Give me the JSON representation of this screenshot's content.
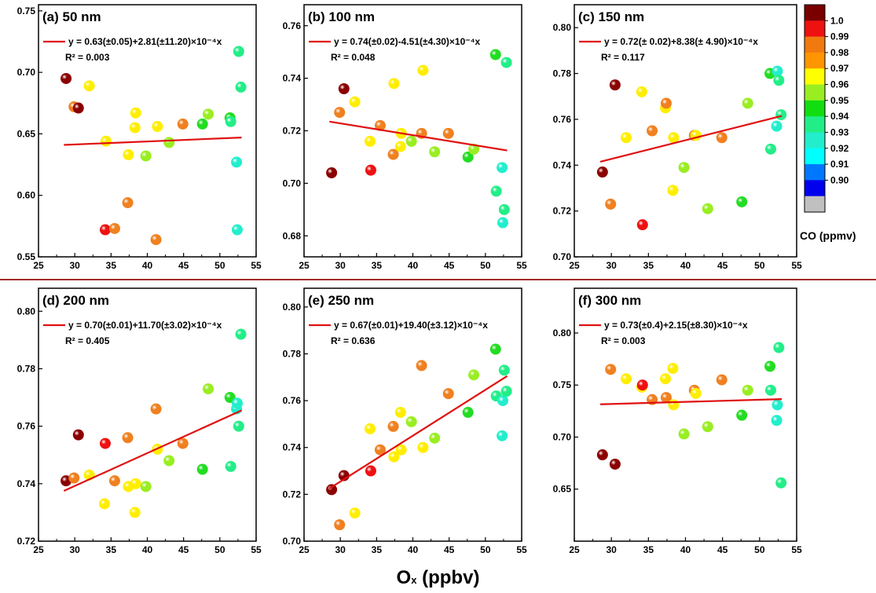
{
  "colors": {
    "fit_line": "#e01010",
    "separator": "#a52a2a"
  },
  "xlabel": {
    "main": "O",
    "sub": "x",
    "rest": " (ppbv)"
  },
  "colorbar": {
    "title": "CO (ppmv)",
    "levels": [
      {
        "label": "1.0",
        "color": "#ee1111"
      },
      {
        "label": "0.99",
        "color": "#f07a10"
      },
      {
        "label": "0.98",
        "color": "#ff9500"
      },
      {
        "label": "0.97",
        "color": "#ffff00"
      },
      {
        "label": "0.96",
        "color": "#99ee22"
      },
      {
        "label": "0.95",
        "color": "#11dd11"
      },
      {
        "label": "0.94",
        "color": "#22ee88"
      },
      {
        "label": "0.93",
        "color": "#22eecc"
      },
      {
        "label": "0.92",
        "color": "#00ffff"
      },
      {
        "label": "0.91",
        "color": "#0077ff"
      },
      {
        "label": "0.90",
        "color": "#0000ee"
      }
    ],
    "top_color": "#7a0000",
    "bottom_color": "#c0c0c0"
  },
  "chart_data": [
    {
      "type": "scatter",
      "title": "(a) 50 nm",
      "equation": "y = 0.63(±0.05)+2.81(±11.20)×10⁻⁴x",
      "r2": "R² = 0.003",
      "xlim": [
        25,
        55
      ],
      "ylim": [
        0.55,
        0.755
      ],
      "xticks": [
        "25",
        "30",
        "35",
        "40",
        "45",
        "50",
        "55"
      ],
      "yticks": [
        "0.55",
        "0.60",
        "0.65",
        "0.70",
        "0.75"
      ],
      "fit": [
        [
          28.5,
          0.641
        ],
        [
          53,
          0.647
        ]
      ],
      "points": [
        {
          "x": 28.8,
          "y": 0.695,
          "c": "#8b0000"
        },
        {
          "x": 29.9,
          "y": 0.672,
          "c": "#f08020"
        },
        {
          "x": 30.5,
          "y": 0.671,
          "c": "#8b0000"
        },
        {
          "x": 32.0,
          "y": 0.689,
          "c": "#ffee00"
        },
        {
          "x": 34.2,
          "y": 0.572,
          "c": "#ee1111"
        },
        {
          "x": 34.3,
          "y": 0.644,
          "c": "#ffee00"
        },
        {
          "x": 35.5,
          "y": 0.573,
          "c": "#f08020"
        },
        {
          "x": 37.3,
          "y": 0.594,
          "c": "#f08020"
        },
        {
          "x": 37.4,
          "y": 0.633,
          "c": "#ffee00"
        },
        {
          "x": 38.3,
          "y": 0.655,
          "c": "#ffee00"
        },
        {
          "x": 38.4,
          "y": 0.667,
          "c": "#ffee00"
        },
        {
          "x": 39.8,
          "y": 0.632,
          "c": "#99ee22"
        },
        {
          "x": 41.2,
          "y": 0.564,
          "c": "#f08020"
        },
        {
          "x": 41.4,
          "y": 0.656,
          "c": "#ffee00"
        },
        {
          "x": 43.0,
          "y": 0.643,
          "c": "#99ee22"
        },
        {
          "x": 44.9,
          "y": 0.658,
          "c": "#f08020"
        },
        {
          "x": 47.6,
          "y": 0.658,
          "c": "#22dd22"
        },
        {
          "x": 48.4,
          "y": 0.666,
          "c": "#99ee22"
        },
        {
          "x": 51.4,
          "y": 0.663,
          "c": "#22dd22"
        },
        {
          "x": 51.5,
          "y": 0.66,
          "c": "#22ee88"
        },
        {
          "x": 52.3,
          "y": 0.627,
          "c": "#22eecc"
        },
        {
          "x": 52.4,
          "y": 0.572,
          "c": "#22eecc"
        },
        {
          "x": 52.6,
          "y": 0.717,
          "c": "#22ee88"
        },
        {
          "x": 52.9,
          "y": 0.688,
          "c": "#22ee88"
        }
      ]
    },
    {
      "type": "scatter",
      "title": "(b) 100 nm",
      "equation": "y = 0.74(±0.02)-4.51(±4.30)×10⁻⁴x",
      "r2": "R² = 0.048",
      "xlim": [
        25,
        55
      ],
      "ylim": [
        0.672,
        0.768
      ],
      "xticks": [
        "25",
        "30",
        "35",
        "40",
        "45",
        "50",
        "55"
      ],
      "yticks": [
        "0.68",
        "0.70",
        "0.72",
        "0.74",
        "0.76"
      ],
      "fit": [
        [
          28.5,
          0.7235
        ],
        [
          53,
          0.7125
        ]
      ],
      "points": [
        {
          "x": 28.8,
          "y": 0.704,
          "c": "#8b0000"
        },
        {
          "x": 29.9,
          "y": 0.727,
          "c": "#f08020"
        },
        {
          "x": 30.5,
          "y": 0.736,
          "c": "#8b0000"
        },
        {
          "x": 32.0,
          "y": 0.731,
          "c": "#ffee00"
        },
        {
          "x": 34.1,
          "y": 0.716,
          "c": "#ffee00"
        },
        {
          "x": 34.2,
          "y": 0.705,
          "c": "#ee1111"
        },
        {
          "x": 35.5,
          "y": 0.722,
          "c": "#f08020"
        },
        {
          "x": 37.3,
          "y": 0.711,
          "c": "#f08020"
        },
        {
          "x": 37.4,
          "y": 0.738,
          "c": "#ffee00"
        },
        {
          "x": 38.3,
          "y": 0.714,
          "c": "#ffee00"
        },
        {
          "x": 38.4,
          "y": 0.719,
          "c": "#ffee00"
        },
        {
          "x": 39.8,
          "y": 0.716,
          "c": "#99ee22"
        },
        {
          "x": 41.2,
          "y": 0.719,
          "c": "#f08020"
        },
        {
          "x": 41.4,
          "y": 0.743,
          "c": "#ffee00"
        },
        {
          "x": 43.0,
          "y": 0.712,
          "c": "#99ee22"
        },
        {
          "x": 44.9,
          "y": 0.719,
          "c": "#f08020"
        },
        {
          "x": 47.6,
          "y": 0.71,
          "c": "#22dd22"
        },
        {
          "x": 48.4,
          "y": 0.713,
          "c": "#99ee22"
        },
        {
          "x": 51.4,
          "y": 0.749,
          "c": "#22dd22"
        },
        {
          "x": 51.5,
          "y": 0.697,
          "c": "#22ee88"
        },
        {
          "x": 52.3,
          "y": 0.706,
          "c": "#22eecc"
        },
        {
          "x": 52.4,
          "y": 0.685,
          "c": "#22eecc"
        },
        {
          "x": 52.6,
          "y": 0.69,
          "c": "#22ee88"
        },
        {
          "x": 52.9,
          "y": 0.746,
          "c": "#22ee88"
        }
      ]
    },
    {
      "type": "scatter",
      "title": "(c) 150 nm",
      "equation": "y = 0.72(± 0.02)+8.38(± 4.90)×10⁻⁴x",
      "r2": "R² = 0.117",
      "xlim": [
        25,
        55
      ],
      "ylim": [
        0.7,
        0.81
      ],
      "xticks": [
        "25",
        "30",
        "35",
        "40",
        "45",
        "50",
        "55"
      ],
      "yticks": [
        "0.70",
        "0.72",
        "0.74",
        "0.76",
        "0.78",
        "0.80"
      ],
      "fit": [
        [
          28.5,
          0.7415
        ],
        [
          53,
          0.7615
        ]
      ],
      "points": [
        {
          "x": 28.8,
          "y": 0.737,
          "c": "#8b0000"
        },
        {
          "x": 29.9,
          "y": 0.723,
          "c": "#f08020"
        },
        {
          "x": 30.5,
          "y": 0.775,
          "c": "#8b0000"
        },
        {
          "x": 32.0,
          "y": 0.752,
          "c": "#ffee00"
        },
        {
          "x": 34.1,
          "y": 0.772,
          "c": "#ffee00"
        },
        {
          "x": 34.2,
          "y": 0.714,
          "c": "#ee1111"
        },
        {
          "x": 35.5,
          "y": 0.755,
          "c": "#f08020"
        },
        {
          "x": 37.3,
          "y": 0.765,
          "c": "#ffee00"
        },
        {
          "x": 37.4,
          "y": 0.767,
          "c": "#f08020"
        },
        {
          "x": 38.3,
          "y": 0.729,
          "c": "#ffee00"
        },
        {
          "x": 38.4,
          "y": 0.752,
          "c": "#ffee00"
        },
        {
          "x": 39.8,
          "y": 0.739,
          "c": "#99ee22"
        },
        {
          "x": 41.2,
          "y": 0.753,
          "c": "#f08020"
        },
        {
          "x": 41.4,
          "y": 0.753,
          "c": "#ffee00"
        },
        {
          "x": 43.0,
          "y": 0.721,
          "c": "#99ee22"
        },
        {
          "x": 44.9,
          "y": 0.752,
          "c": "#f08020"
        },
        {
          "x": 47.6,
          "y": 0.724,
          "c": "#22dd22"
        },
        {
          "x": 48.4,
          "y": 0.767,
          "c": "#99ee22"
        },
        {
          "x": 51.4,
          "y": 0.78,
          "c": "#22dd22"
        },
        {
          "x": 51.5,
          "y": 0.747,
          "c": "#22ee88"
        },
        {
          "x": 52.3,
          "y": 0.757,
          "c": "#22eecc"
        },
        {
          "x": 52.4,
          "y": 0.781,
          "c": "#22eecc"
        },
        {
          "x": 52.6,
          "y": 0.777,
          "c": "#22ee88"
        },
        {
          "x": 52.9,
          "y": 0.762,
          "c": "#22ee88"
        }
      ]
    },
    {
      "type": "scatter",
      "title": "(d) 200 nm",
      "equation": "y = 0.70(±0.01)+11.70(±3.02)×10⁻⁴x",
      "r2": "R² = 0.405",
      "xlim": [
        25,
        55
      ],
      "ylim": [
        0.72,
        0.808
      ],
      "xticks": [
        "25",
        "30",
        "35",
        "40",
        "45",
        "50",
        "55"
      ],
      "yticks": [
        "0.72",
        "0.74",
        "0.76",
        "0.78",
        "0.80"
      ],
      "fit": [
        [
          28.5,
          0.7375
        ],
        [
          53,
          0.7655
        ]
      ],
      "points": [
        {
          "x": 28.8,
          "y": 0.741,
          "c": "#8b0000"
        },
        {
          "x": 29.9,
          "y": 0.742,
          "c": "#f08020"
        },
        {
          "x": 30.5,
          "y": 0.757,
          "c": "#8b0000"
        },
        {
          "x": 32.0,
          "y": 0.743,
          "c": "#ffee00"
        },
        {
          "x": 34.1,
          "y": 0.733,
          "c": "#ffee00"
        },
        {
          "x": 34.2,
          "y": 0.754,
          "c": "#ee1111"
        },
        {
          "x": 35.5,
          "y": 0.741,
          "c": "#f08020"
        },
        {
          "x": 37.3,
          "y": 0.756,
          "c": "#f08020"
        },
        {
          "x": 37.4,
          "y": 0.739,
          "c": "#ffee00"
        },
        {
          "x": 38.3,
          "y": 0.73,
          "c": "#ffee00"
        },
        {
          "x": 38.4,
          "y": 0.74,
          "c": "#ffee00"
        },
        {
          "x": 39.8,
          "y": 0.739,
          "c": "#99ee22"
        },
        {
          "x": 41.2,
          "y": 0.766,
          "c": "#f08020"
        },
        {
          "x": 41.4,
          "y": 0.752,
          "c": "#ffee00"
        },
        {
          "x": 43.0,
          "y": 0.748,
          "c": "#99ee22"
        },
        {
          "x": 44.9,
          "y": 0.754,
          "c": "#f08020"
        },
        {
          "x": 47.6,
          "y": 0.745,
          "c": "#22dd22"
        },
        {
          "x": 48.4,
          "y": 0.773,
          "c": "#99ee22"
        },
        {
          "x": 51.4,
          "y": 0.77,
          "c": "#22dd22"
        },
        {
          "x": 51.5,
          "y": 0.746,
          "c": "#22ee88"
        },
        {
          "x": 52.3,
          "y": 0.766,
          "c": "#22eecc"
        },
        {
          "x": 52.4,
          "y": 0.768,
          "c": "#22eecc"
        },
        {
          "x": 52.6,
          "y": 0.76,
          "c": "#22ee88"
        },
        {
          "x": 52.9,
          "y": 0.792,
          "c": "#22ee88"
        }
      ]
    },
    {
      "type": "scatter",
      "title": "(e) 250 nm",
      "equation": "y = 0.67(±0.01)+19.40(±3.12)×10⁻⁴x",
      "r2": "R² = 0.636",
      "xlim": [
        25,
        55
      ],
      "ylim": [
        0.7,
        0.808
      ],
      "xticks": [
        "25",
        "30",
        "35",
        "40",
        "45",
        "50",
        "55"
      ],
      "yticks": [
        "0.70",
        "0.72",
        "0.74",
        "0.76",
        "0.78",
        "0.80"
      ],
      "fit": [
        [
          28.5,
          0.7225
        ],
        [
          53,
          0.7705
        ]
      ],
      "points": [
        {
          "x": 28.8,
          "y": 0.722,
          "c": "#8b0000"
        },
        {
          "x": 29.9,
          "y": 0.707,
          "c": "#f08020"
        },
        {
          "x": 30.5,
          "y": 0.728,
          "c": "#8b0000"
        },
        {
          "x": 32.0,
          "y": 0.712,
          "c": "#ffee00"
        },
        {
          "x": 34.1,
          "y": 0.748,
          "c": "#ffee00"
        },
        {
          "x": 34.2,
          "y": 0.73,
          "c": "#ee1111"
        },
        {
          "x": 35.5,
          "y": 0.739,
          "c": "#f08020"
        },
        {
          "x": 37.3,
          "y": 0.749,
          "c": "#f08020"
        },
        {
          "x": 37.4,
          "y": 0.736,
          "c": "#ffee00"
        },
        {
          "x": 38.3,
          "y": 0.755,
          "c": "#ffee00"
        },
        {
          "x": 38.4,
          "y": 0.739,
          "c": "#ffee00"
        },
        {
          "x": 39.8,
          "y": 0.751,
          "c": "#99ee22"
        },
        {
          "x": 41.2,
          "y": 0.775,
          "c": "#f08020"
        },
        {
          "x": 41.4,
          "y": 0.74,
          "c": "#ffee00"
        },
        {
          "x": 43.0,
          "y": 0.744,
          "c": "#99ee22"
        },
        {
          "x": 44.9,
          "y": 0.763,
          "c": "#f08020"
        },
        {
          "x": 47.6,
          "y": 0.755,
          "c": "#22dd22"
        },
        {
          "x": 48.4,
          "y": 0.771,
          "c": "#99ee22"
        },
        {
          "x": 51.4,
          "y": 0.782,
          "c": "#22dd22"
        },
        {
          "x": 51.5,
          "y": 0.762,
          "c": "#22ee88"
        },
        {
          "x": 52.3,
          "y": 0.745,
          "c": "#22eecc"
        },
        {
          "x": 52.4,
          "y": 0.76,
          "c": "#22eecc"
        },
        {
          "x": 52.6,
          "y": 0.773,
          "c": "#22ee88"
        },
        {
          "x": 52.9,
          "y": 0.764,
          "c": "#22ee88"
        }
      ]
    },
    {
      "type": "scatter",
      "title": "(f) 300 nm",
      "equation": "y = 0.73(±0.4)+2.15(±8.30)×10⁻⁴x",
      "r2": "R² = 0.003",
      "xlim": [
        25,
        55
      ],
      "ylim": [
        0.6,
        0.843
      ],
      "xticks": [
        "25",
        "30",
        "35",
        "40",
        "45",
        "50",
        "55"
      ],
      "yticks": [
        "0.65",
        "0.70",
        "0.75",
        "0.80"
      ],
      "fit": [
        [
          28.5,
          0.7315
        ],
        [
          53,
          0.7365
        ]
      ],
      "points": [
        {
          "x": 28.8,
          "y": 0.683,
          "c": "#8b0000"
        },
        {
          "x": 29.9,
          "y": 0.765,
          "c": "#f08020"
        },
        {
          "x": 30.5,
          "y": 0.674,
          "c": "#8b0000"
        },
        {
          "x": 32.0,
          "y": 0.756,
          "c": "#ffee00"
        },
        {
          "x": 34.1,
          "y": 0.748,
          "c": "#ffee00"
        },
        {
          "x": 34.2,
          "y": 0.75,
          "c": "#ee1111"
        },
        {
          "x": 35.5,
          "y": 0.736,
          "c": "#f08020"
        },
        {
          "x": 37.3,
          "y": 0.756,
          "c": "#ffee00"
        },
        {
          "x": 37.4,
          "y": 0.738,
          "c": "#f08020"
        },
        {
          "x": 38.3,
          "y": 0.766,
          "c": "#ffee00"
        },
        {
          "x": 38.4,
          "y": 0.731,
          "c": "#ffee00"
        },
        {
          "x": 39.8,
          "y": 0.703,
          "c": "#99ee22"
        },
        {
          "x": 41.2,
          "y": 0.745,
          "c": "#f08020"
        },
        {
          "x": 41.4,
          "y": 0.742,
          "c": "#ffee00"
        },
        {
          "x": 43.0,
          "y": 0.71,
          "c": "#99ee22"
        },
        {
          "x": 44.9,
          "y": 0.755,
          "c": "#f08020"
        },
        {
          "x": 47.6,
          "y": 0.721,
          "c": "#22dd22"
        },
        {
          "x": 48.4,
          "y": 0.745,
          "c": "#99ee22"
        },
        {
          "x": 51.4,
          "y": 0.768,
          "c": "#22dd22"
        },
        {
          "x": 51.5,
          "y": 0.745,
          "c": "#22ee88"
        },
        {
          "x": 52.3,
          "y": 0.716,
          "c": "#22eecc"
        },
        {
          "x": 52.4,
          "y": 0.731,
          "c": "#22eecc"
        },
        {
          "x": 52.6,
          "y": 0.786,
          "c": "#22ee88"
        },
        {
          "x": 52.9,
          "y": 0.656,
          "c": "#22ee88"
        }
      ]
    }
  ]
}
